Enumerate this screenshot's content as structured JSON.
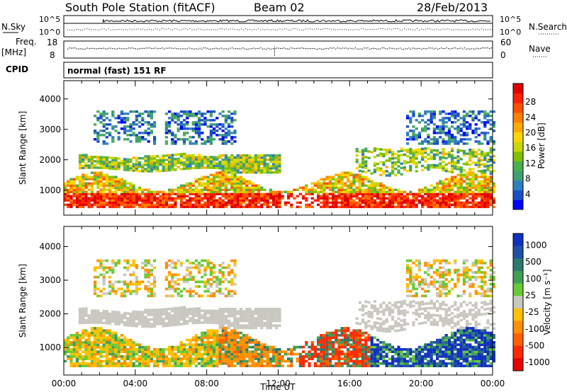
{
  "header": {
    "station": "South Pole Station (fitACF)",
    "beam": "Beam 02",
    "date": "28/Feb/2013"
  },
  "top_panels": {
    "nsky_label": "N.Sky",
    "nsky_axis": [
      "10^5",
      "10^0"
    ],
    "nsearch_label": "N.Search",
    "nsearch_axis": [
      "10^5",
      "10^0"
    ],
    "freq_label": "Freq.",
    "freq_unit": "[MHz]",
    "freq_axis": [
      "18",
      "8"
    ],
    "nave_label": "Nave",
    "nave_axis": [
      "60",
      "0"
    ],
    "cpid_label": "CPID",
    "cpid_value": "normal (fast) 151 RF"
  },
  "chart_data": [
    {
      "type": "heatmap",
      "name": "power",
      "ylabel": "Slant Range [km]",
      "ylim": [
        180,
        4600
      ],
      "yticks": [
        "1000",
        "2000",
        "3000",
        "4000"
      ],
      "colorbar": {
        "label": "Power [dB]",
        "ticks": [
          "4",
          "8",
          "12",
          "16",
          "20",
          "24",
          "28"
        ],
        "colors": [
          "#0000ff",
          "#1a4fc8",
          "#2f7fbf",
          "#3fa070",
          "#4caf50",
          "#80c000",
          "#c8d800",
          "#ffd700",
          "#ffaa00",
          "#ff8000",
          "#ff5000",
          "#ff2000",
          "#e00000"
        ]
      }
    },
    {
      "type": "heatmap",
      "name": "velocity",
      "ylabel": "Slant Range [km]",
      "ylim": [
        180,
        4600
      ],
      "yticks": [
        "1000",
        "2000",
        "3000",
        "4000"
      ],
      "colorbar": {
        "label": "Velocity [m s⁻¹]",
        "ticks": [
          "1000",
          "500",
          "100",
          "25",
          "-25",
          "-100",
          "-500",
          "-1000"
        ],
        "colors": [
          "#1030c0",
          "#2050a8",
          "#2a7a70",
          "#3f9f55",
          "#66cc33",
          "#c8c8c0",
          "#ffc000",
          "#ff9000",
          "#ff6000",
          "#ff2a00",
          "#e80000"
        ]
      },
      "xlabel": "Time UT",
      "xticks": [
        "00:00",
        "04:00",
        "08:00",
        "12:00",
        "16:00",
        "20:00",
        "00:00"
      ]
    }
  ]
}
